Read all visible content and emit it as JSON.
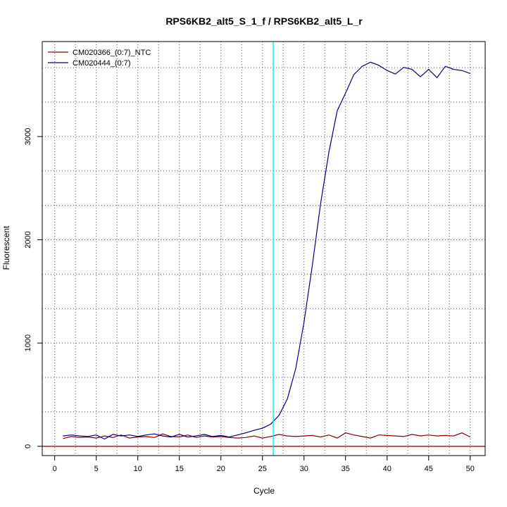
{
  "chart_data": {
    "type": "line",
    "title": "RPS6KB2_alt5_S_1_f / RPS6KB2_alt5_L_r",
    "xlabel": "Cycle",
    "ylabel": "Fluorescent",
    "xlim": [
      -1.5,
      51.8
    ],
    "ylim": [
      -90,
      3920
    ],
    "x_ticks": [
      0,
      5,
      10,
      15,
      20,
      25,
      30,
      35,
      40,
      45,
      50
    ],
    "y_ticks": [
      0,
      1000,
      2000,
      3000
    ],
    "grid": true,
    "legend_position": "top-left",
    "threshold_line": {
      "x": 26.3,
      "color": "#00e5ee"
    },
    "baseline": {
      "y": 0,
      "color": "#cc0000"
    },
    "series": [
      {
        "name": "CM020366_(0:7)_NTC",
        "color": "#8b0000",
        "x": [
          1,
          2,
          3,
          4,
          5,
          6,
          7,
          8,
          9,
          10,
          11,
          12,
          13,
          14,
          15,
          16,
          17,
          18,
          19,
          20,
          21,
          22,
          23,
          24,
          25,
          26,
          27,
          28,
          29,
          30,
          31,
          32,
          33,
          34,
          35,
          36,
          37,
          38,
          39,
          40,
          41,
          42,
          43,
          44,
          45,
          46,
          47,
          48,
          49,
          50
        ],
        "values": [
          75,
          95,
          85,
          90,
          80,
          100,
          85,
          110,
          80,
          90,
          95,
          85,
          120,
          95,
          90,
          110,
          85,
          100,
          90,
          95,
          85,
          80,
          85,
          100,
          80,
          95,
          115,
          100,
          95,
          100,
          105,
          90,
          110,
          80,
          130,
          110,
          95,
          80,
          110,
          105,
          100,
          95,
          115,
          100,
          110,
          100,
          105,
          100,
          130,
          90
        ]
      },
      {
        "name": "CM020444_(0:7)",
        "color": "#00008b",
        "x": [
          1,
          2,
          3,
          4,
          5,
          6,
          7,
          8,
          9,
          10,
          11,
          12,
          13,
          14,
          15,
          16,
          17,
          18,
          19,
          20,
          21,
          22,
          23,
          24,
          25,
          26,
          27,
          28,
          29,
          30,
          31,
          32,
          33,
          34,
          35,
          36,
          37,
          38,
          39,
          40,
          41,
          42,
          43,
          44,
          45,
          46,
          47,
          48,
          49,
          50
        ],
        "values": [
          100,
          110,
          100,
          95,
          110,
          70,
          115,
          100,
          110,
          95,
          110,
          120,
          100,
          90,
          115,
          90,
          100,
          115,
          95,
          105,
          90,
          110,
          130,
          155,
          175,
          215,
          300,
          460,
          750,
          1200,
          1750,
          2350,
          2850,
          3250,
          3420,
          3600,
          3680,
          3720,
          3690,
          3640,
          3605,
          3670,
          3650,
          3580,
          3650,
          3570,
          3680,
          3650,
          3640,
          3610
        ]
      }
    ]
  }
}
